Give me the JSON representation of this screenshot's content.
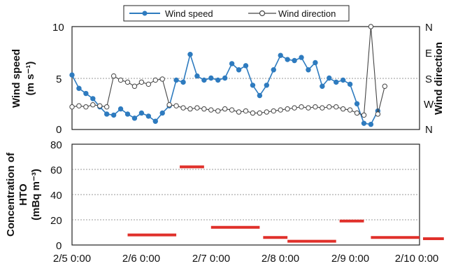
{
  "chart_data": [
    {
      "type": "line",
      "ylabel": "Wind speed (m s⁻¹)",
      "y2label": "Wind direction",
      "legend": {
        "placement": "top-center",
        "entries": [
          "Wind speed",
          "Wind direction"
        ]
      },
      "x_range": [
        "2/5 0:00",
        "2/10 0:00"
      ],
      "ylim": [
        0,
        10
      ],
      "yticks": [
        "0",
        "5",
        "10"
      ],
      "y2ticks": [
        "N",
        "W",
        "S",
        "E",
        "N"
      ],
      "grid": "dashed line at 5",
      "colors": {
        "speed": "#2e7bbf",
        "direction": "#444444"
      },
      "series": [
        {
          "name": "Wind speed",
          "x_days": [
            0,
            0.1,
            0.2,
            0.3,
            0.4,
            0.5,
            0.6,
            0.7,
            0.8,
            0.9,
            1.0,
            1.1,
            1.2,
            1.3,
            1.4,
            1.5,
            1.6,
            1.7,
            1.8,
            1.9,
            2.0,
            2.1,
            2.2,
            2.3,
            2.4,
            2.5,
            2.6,
            2.7,
            2.8,
            2.9,
            3.0,
            3.1,
            3.2,
            3.3,
            3.4,
            3.5,
            3.6,
            3.7,
            3.8,
            3.9,
            4.0,
            4.1,
            4.2,
            4.3,
            4.4,
            4.5,
            4.6,
            4.7,
            4.8,
            4.9,
            4.95
          ],
          "values": [
            5.3,
            4.0,
            3.5,
            3.0,
            2.2,
            1.5,
            1.4,
            2.0,
            1.5,
            1.1,
            1.6,
            1.3,
            0.8,
            1.6,
            2.3,
            4.8,
            4.6,
            7.3,
            5.2,
            4.8,
            5.0,
            4.8,
            5.0,
            6.4,
            5.8,
            6.2,
            4.3,
            3.3,
            4.3,
            5.8,
            7.2,
            6.8,
            6.7,
            7.0,
            5.8,
            6.5,
            4.2,
            5.0,
            4.6,
            4.8,
            4.4,
            2.5,
            0.6,
            0.5,
            1.8,
            null,
            null,
            null,
            null,
            null,
            null
          ]
        },
        {
          "name": "Wind direction",
          "x_days": [
            0,
            0.1,
            0.2,
            0.3,
            0.4,
            0.5,
            0.6,
            0.7,
            0.8,
            0.9,
            1.0,
            1.1,
            1.2,
            1.3,
            1.4,
            1.5,
            1.6,
            1.7,
            1.8,
            1.9,
            2.0,
            2.1,
            2.2,
            2.3,
            2.4,
            2.5,
            2.6,
            2.7,
            2.8,
            2.9,
            3.0,
            3.1,
            3.2,
            3.3,
            3.4,
            3.5,
            3.6,
            3.7,
            3.8,
            3.9,
            4.0,
            4.1,
            4.2,
            4.3,
            4.4,
            4.5
          ],
          "values": [
            2.2,
            2.3,
            2.2,
            2.4,
            2.3,
            2.2,
            5.2,
            4.8,
            4.6,
            4.2,
            4.6,
            4.4,
            4.8,
            4.9,
            2.4,
            2.3,
            2.1,
            2.0,
            2.1,
            2.0,
            1.9,
            1.8,
            2.0,
            1.9,
            1.7,
            1.8,
            1.6,
            1.6,
            1.7,
            1.8,
            1.9,
            2.0,
            2.1,
            2.2,
            2.1,
            2.2,
            2.1,
            2.2,
            2.2,
            2.0,
            1.9,
            1.6,
            1.4,
            10.0,
            1.5,
            4.2
          ]
        }
      ]
    },
    {
      "type": "bar",
      "ylabel": "Concentration of HTO (mBq m⁻³)",
      "xticks": [
        "2/5 0:00",
        "2/6 0:00",
        "2/7 0:00",
        "2/8 0:00",
        "2/9 0:00",
        "2/10 0:00"
      ],
      "ylim": [
        0,
        80
      ],
      "yticks": [
        "0",
        "20",
        "40",
        "60",
        "80"
      ],
      "grid": "dashed horizontal lines",
      "color": "#e0302a",
      "segments": [
        {
          "x_start": 0.8,
          "x_end": 1.5,
          "y": 8
        },
        {
          "x_start": 1.55,
          "x_end": 1.9,
          "y": 62
        },
        {
          "x_start": 2.0,
          "x_end": 2.7,
          "y": 14
        },
        {
          "x_start": 2.75,
          "x_end": 3.1,
          "y": 6
        },
        {
          "x_start": 3.1,
          "x_end": 3.8,
          "y": 3
        },
        {
          "x_start": 3.85,
          "x_end": 4.2,
          "y": 19
        },
        {
          "x_start": 4.3,
          "x_end": 5.0,
          "y": 6
        },
        {
          "x_start": 5.05,
          "x_end": 5.35,
          "y": 5
        }
      ]
    }
  ]
}
